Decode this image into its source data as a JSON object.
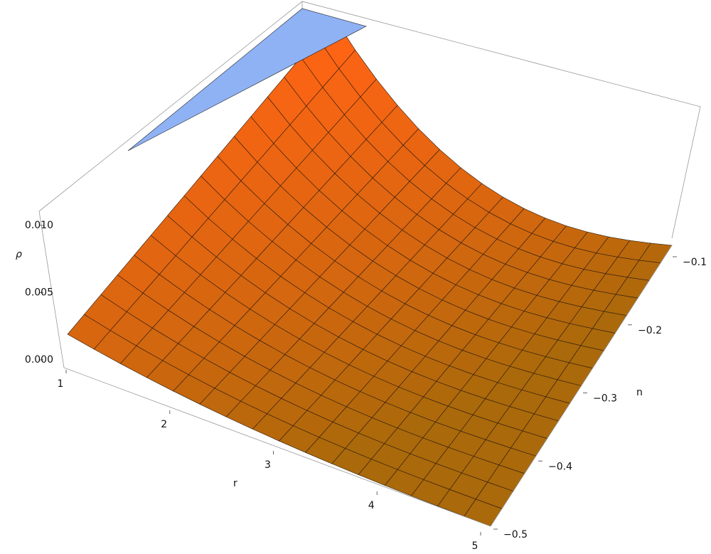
{
  "chart_data": {
    "type": "surface3d",
    "xlabel": "r",
    "ylabel": "n",
    "zlabel": "ρ",
    "xlim": [
      1,
      5
    ],
    "xticks": [
      1,
      2,
      3,
      4,
      5
    ],
    "ylim": [
      -0.5,
      -0.1
    ],
    "yticks": [
      {
        "value": -0.5,
        "label": "−0.5"
      },
      {
        "value": -0.4,
        "label": "−0.4"
      },
      {
        "value": -0.3,
        "label": "−0.3"
      },
      {
        "value": -0.2,
        "label": "−0.2"
      },
      {
        "value": -0.1,
        "label": "−0.1"
      }
    ],
    "zlim": [
      0,
      0.0115
    ],
    "zticks": [
      {
        "value": 0,
        "label": "0.000"
      },
      {
        "value": 0.005,
        "label": "0.005"
      },
      {
        "value": 0.01,
        "label": "0.010"
      }
    ]
  }
}
